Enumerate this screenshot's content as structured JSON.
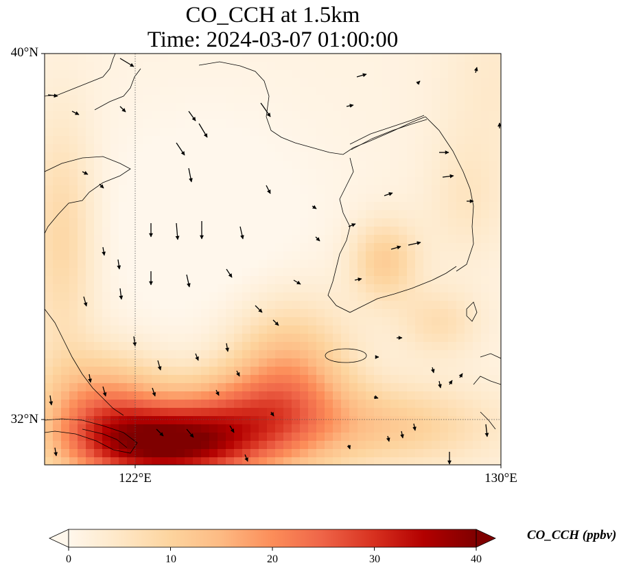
{
  "title": {
    "line1": "CO_CCH at 1.5km",
    "line2": "Time: 2024-03-07 01:00:00"
  },
  "axes": {
    "lat_labels": [
      "40°N",
      "32°N"
    ],
    "lon_labels": [
      "122°E",
      "130°E"
    ],
    "extent": {
      "lon_min": 120,
      "lon_max": 130,
      "lat_min": 31,
      "lat_max": 40
    },
    "gridlines": {
      "lon": 122,
      "lat": 32,
      "style": "dotted"
    }
  },
  "colorbar": {
    "label": "CO_CCH (ppbv)",
    "ticks": [
      "0",
      "10",
      "20",
      "30",
      "40"
    ],
    "min": 0,
    "max": 40,
    "colormap": "OrRd",
    "stops": [
      "#fff7ec",
      "#fee8c8",
      "#fdd49e",
      "#fdbb84",
      "#fc8d59",
      "#ef6548",
      "#d7301f",
      "#b30000",
      "#7f0000"
    ]
  },
  "field_description": "High CO concentrations (30-40 ppbv) concentrated in the southwest near the Yangtze estuary around 31.3-31.8N 121.5-124E, decreasing toward near-zero over the Yellow Sea center; moderate values (12-20 ppbv) over southern Korea and East China Sea.",
  "wind_arrows": "black quiver arrows showing mostly southward to south-eastward flow over the Yellow Sea and eastward flow over Korea"
}
